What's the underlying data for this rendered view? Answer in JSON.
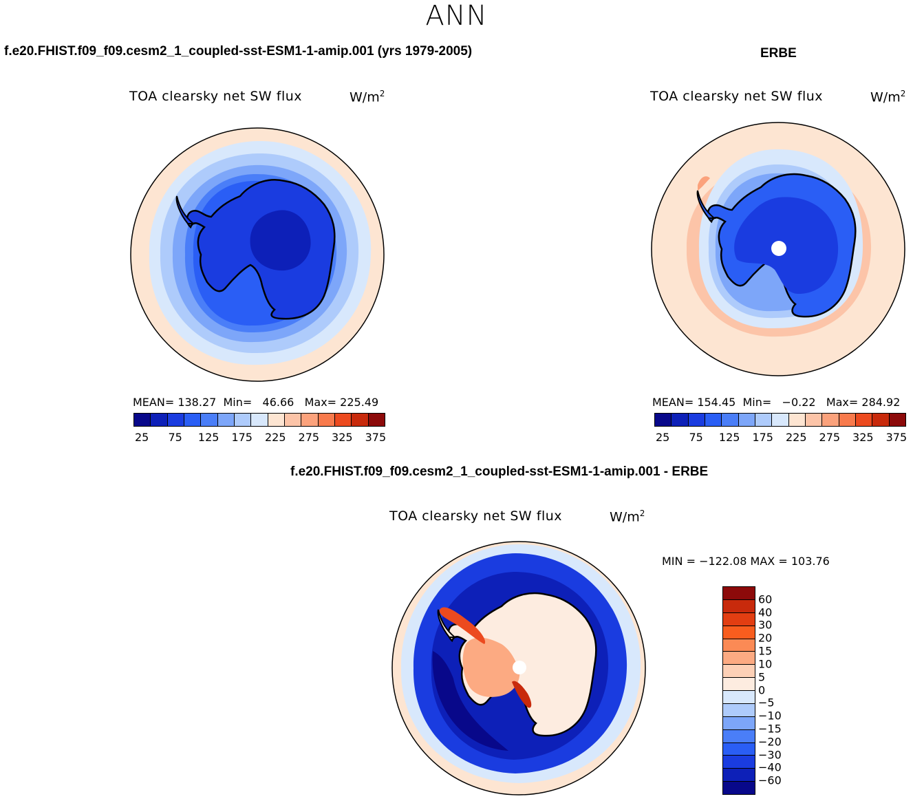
{
  "suptitle": "ANN",
  "panels": {
    "model": {
      "case_title": "f.e20.FHIST.f09_f09.cesm2_1_coupled-sst-ESM1-1-amip.001 (yrs 1979-2005)",
      "variable_title": "TOA clearsky net SW flux",
      "units_base": "W/m",
      "units_exp": "2",
      "stats": "MEAN= 138.27  Min=   46.66   Max= 225.49"
    },
    "obs": {
      "case_title": "ERBE",
      "variable_title": "TOA clearsky net SW flux",
      "units_base": "W/m",
      "units_exp": "2",
      "stats": "MEAN= 154.45  Min=   −0.22   Max= 284.92"
    },
    "diff": {
      "case_title": "f.e20.FHIST.f09_f09.cesm2_1_coupled-sst-ESM1-1-amip.001 - ERBE",
      "variable_title": "TOA clearsky net SW flux",
      "units_base": "W/m",
      "units_exp": "2",
      "stats": "MIN = −122.08 MAX = 103.76"
    }
  },
  "abs_colorbar": {
    "colors": [
      "#08088a",
      "#0d20b8",
      "#1a3ce0",
      "#2a5ef5",
      "#4a7ef8",
      "#7da6f9",
      "#aecbfb",
      "#d8e8fc",
      "#fde5d2",
      "#fcc4a8",
      "#fba27c",
      "#f87a4c",
      "#ec4a1f",
      "#c82a0c",
      "#8c0a0a"
    ],
    "labels": [
      "25",
      "75",
      "125",
      "175",
      "225",
      "275",
      "325",
      "375"
    ]
  },
  "diff_colorbar": {
    "colors_top_to_bottom": [
      "#8c0a0a",
      "#c82a0c",
      "#e23e12",
      "#f85d1e",
      "#fb8a55",
      "#fcaa82",
      "#fdd0b6",
      "#fdece0",
      "#d8e8fc",
      "#aecbfb",
      "#7da6f9",
      "#4a7ef8",
      "#2a5ef5",
      "#1a3ce0",
      "#0d20b8",
      "#08088a"
    ],
    "labels": [
      "60",
      "40",
      "30",
      "20",
      "15",
      "10",
      "5",
      "0",
      "−5",
      "−10",
      "−15",
      "−20",
      "−30",
      "−40",
      "−60"
    ]
  },
  "map_colors": {
    "ocean_warm": "#fde5d2",
    "light_blue": "#d8e8fc",
    "mid_blue": "#7da6f9",
    "blue": "#2a5ef5",
    "deep_blue": "#0d20b8",
    "darkest_blue": "#08088a",
    "red": "#ec4a1f",
    "dark_red": "#c82a0c",
    "pole_hole": "#ffffff"
  }
}
